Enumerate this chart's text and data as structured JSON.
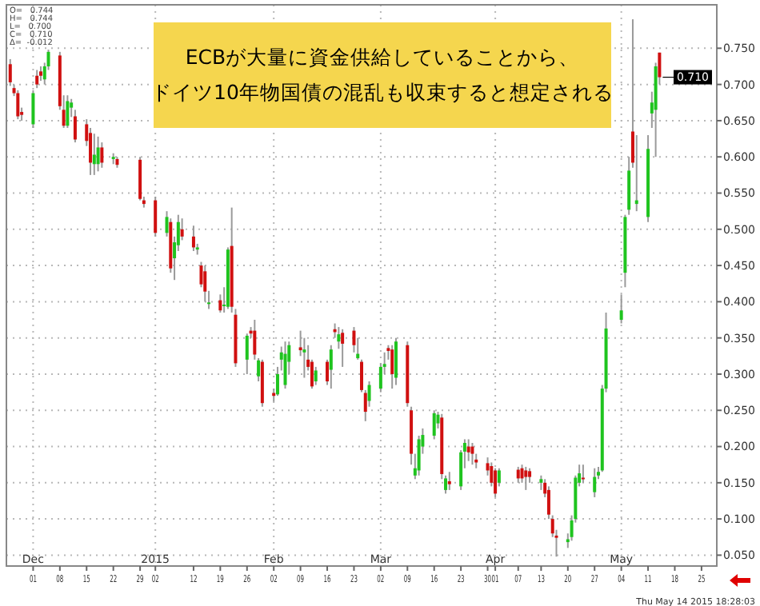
{
  "chart_data": {
    "type": "candlestick",
    "title": "ECBが大量に資金供給していることから、",
    "subtitle": "ドイツ10年物国債の混乱も収束すると想定される",
    "x": [
      "2014-11-25",
      "2014-11-26",
      "2014-11-27",
      "2014-11-28",
      "2014-12-01",
      "2014-12-02",
      "2014-12-03",
      "2014-12-04",
      "2014-12-05",
      "2014-12-08",
      "2014-12-09",
      "2014-12-10",
      "2014-12-11",
      "2014-12-12",
      "2014-12-15",
      "2014-12-16",
      "2014-12-17",
      "2014-12-18",
      "2014-12-19",
      "2014-12-22",
      "2014-12-23",
      "2014-12-29",
      "2014-12-30",
      "2015-01-02",
      "2015-01-05",
      "2015-01-06",
      "2015-01-07",
      "2015-01-08",
      "2015-01-09",
      "2015-01-12",
      "2015-01-13",
      "2015-01-14",
      "2015-01-15",
      "2015-01-16",
      "2015-01-19",
      "2015-01-20",
      "2015-01-21",
      "2015-01-22",
      "2015-01-23",
      "2015-01-26",
      "2015-01-27",
      "2015-01-28",
      "2015-01-29",
      "2015-01-30",
      "2015-02-02",
      "2015-02-03",
      "2015-02-04",
      "2015-02-05",
      "2015-02-06",
      "2015-02-09",
      "2015-02-10",
      "2015-02-11",
      "2015-02-12",
      "2015-02-13",
      "2015-02-16",
      "2015-02-17",
      "2015-02-18",
      "2015-02-19",
      "2015-02-20",
      "2015-02-23",
      "2015-02-24",
      "2015-02-25",
      "2015-02-26",
      "2015-02-27",
      "2015-03-02",
      "2015-03-03",
      "2015-03-04",
      "2015-03-05",
      "2015-03-06",
      "2015-03-09",
      "2015-03-10",
      "2015-03-11",
      "2015-03-12",
      "2015-03-13",
      "2015-03-16",
      "2015-03-17",
      "2015-03-18",
      "2015-03-19",
      "2015-03-20",
      "2015-03-23",
      "2015-03-24",
      "2015-03-25",
      "2015-03-26",
      "2015-03-27",
      "2015-03-30",
      "2015-03-31",
      "2015-04-01",
      "2015-04-02",
      "2015-04-07",
      "2015-04-08",
      "2015-04-09",
      "2015-04-10",
      "2015-04-13",
      "2015-04-14",
      "2015-04-15",
      "2015-04-16",
      "2015-04-17",
      "2015-04-20",
      "2015-04-21",
      "2015-04-22",
      "2015-04-23",
      "2015-04-24",
      "2015-04-27",
      "2015-04-28",
      "2015-04-29",
      "2015-04-30",
      "2015-05-04",
      "2015-05-05",
      "2015-05-06",
      "2015-05-07",
      "2015-05-08",
      "2015-05-11",
      "2015-05-12",
      "2015-05-13",
      "2015-05-14"
    ],
    "ohlc": [
      [
        0.728,
        0.735,
        0.698,
        0.703
      ],
      [
        0.695,
        0.7,
        0.684,
        0.688
      ],
      [
        0.688,
        0.692,
        0.652,
        0.656
      ],
      [
        0.662,
        0.668,
        0.65,
        0.658
      ],
      [
        0.645,
        0.692,
        0.64,
        0.688
      ],
      [
        0.712,
        0.72,
        0.695,
        0.7
      ],
      [
        0.718,
        0.725,
        0.705,
        0.712
      ],
      [
        0.707,
        0.73,
        0.7,
        0.725
      ],
      [
        0.725,
        0.748,
        0.72,
        0.745
      ],
      [
        0.74,
        0.745,
        0.665,
        0.67
      ],
      [
        0.665,
        0.685,
        0.64,
        0.643
      ],
      [
        0.643,
        0.685,
        0.64,
        0.677
      ],
      [
        0.668,
        0.68,
        0.655,
        0.675
      ],
      [
        0.656,
        0.665,
        0.62,
        0.624
      ],
      [
        0.645,
        0.652,
        0.615,
        0.622
      ],
      [
        0.633,
        0.64,
        0.575,
        0.592
      ],
      [
        0.59,
        0.632,
        0.575,
        0.603
      ],
      [
        0.59,
        0.628,
        0.58,
        0.613
      ],
      [
        0.613,
        0.62,
        0.585,
        0.592
      ],
      [
        0.597,
        0.605,
        0.59,
        0.6
      ],
      [
        0.597,
        0.6,
        0.585,
        0.589
      ],
      [
        0.596,
        0.6,
        0.54,
        0.542
      ],
      [
        0.54,
        0.545,
        0.53,
        0.535
      ],
      [
        0.54,
        0.545,
        0.49,
        0.495
      ],
      [
        0.495,
        0.525,
        0.49,
        0.517
      ],
      [
        0.51,
        0.515,
        0.44,
        0.446
      ],
      [
        0.46,
        0.49,
        0.43,
        0.482
      ],
      [
        0.478,
        0.52,
        0.47,
        0.51
      ],
      [
        0.5,
        0.515,
        0.485,
        0.49
      ],
      [
        0.49,
        0.505,
        0.47,
        0.475
      ],
      [
        0.472,
        0.48,
        0.465,
        0.475
      ],
      [
        0.45,
        0.455,
        0.42,
        0.424
      ],
      [
        0.442,
        0.45,
        0.4,
        0.414
      ],
      [
        0.397,
        0.415,
        0.39,
        0.399
      ],
      [
        0.402,
        0.41,
        0.385,
        0.388
      ],
      [
        0.394,
        0.42,
        0.385,
        0.396
      ],
      [
        0.393,
        0.475,
        0.39,
        0.472
      ],
      [
        0.477,
        0.53,
        0.385,
        0.393
      ],
      [
        0.382,
        0.39,
        0.31,
        0.315
      ],
      [
        0.32,
        0.356,
        0.3,
        0.353
      ],
      [
        0.36,
        0.365,
        0.35,
        0.356
      ],
      [
        0.36,
        0.375,
        0.32,
        0.327
      ],
      [
        0.297,
        0.322,
        0.29,
        0.319
      ],
      [
        0.317,
        0.32,
        0.255,
        0.26
      ],
      [
        0.274,
        0.28,
        0.262,
        0.27
      ],
      [
        0.272,
        0.31,
        0.27,
        0.3
      ],
      [
        0.32,
        0.338,
        0.305,
        0.33
      ],
      [
        0.285,
        0.345,
        0.28,
        0.328
      ],
      [
        0.317,
        0.345,
        0.3,
        0.34
      ],
      [
        0.337,
        0.36,
        0.325,
        0.333
      ],
      [
        0.33,
        0.35,
        0.295,
        0.334
      ],
      [
        0.32,
        0.34,
        0.305,
        0.31
      ],
      [
        0.317,
        0.32,
        0.28,
        0.283
      ],
      [
        0.29,
        0.31,
        0.285,
        0.305
      ],
      [
        0.317,
        0.32,
        0.285,
        0.29
      ],
      [
        0.306,
        0.34,
        0.28,
        0.334
      ],
      [
        0.362,
        0.37,
        0.35,
        0.358
      ],
      [
        0.345,
        0.365,
        0.335,
        0.355
      ],
      [
        0.357,
        0.362,
        0.31,
        0.342
      ],
      [
        0.36,
        0.365,
        0.33,
        0.34
      ],
      [
        0.322,
        0.35,
        0.32,
        0.328
      ],
      [
        0.317,
        0.32,
        0.275,
        0.278
      ],
      [
        0.274,
        0.278,
        0.235,
        0.248
      ],
      [
        0.263,
        0.29,
        0.255,
        0.285
      ],
      [
        0.28,
        0.315,
        0.275,
        0.31
      ],
      [
        0.31,
        0.33,
        0.3,
        0.314
      ],
      [
        0.336,
        0.34,
        0.32,
        0.332
      ],
      [
        0.334,
        0.34,
        0.28,
        0.3
      ],
      [
        0.295,
        0.35,
        0.285,
        0.345
      ],
      [
        0.34,
        0.345,
        0.255,
        0.26
      ],
      [
        0.25,
        0.255,
        0.175,
        0.19
      ],
      [
        0.16,
        0.19,
        0.155,
        0.17
      ],
      [
        0.167,
        0.215,
        0.16,
        0.21
      ],
      [
        0.2,
        0.225,
        0.19,
        0.216
      ],
      [
        0.215,
        0.25,
        0.21,
        0.246
      ],
      [
        0.232,
        0.248,
        0.225,
        0.244
      ],
      [
        0.24,
        0.245,
        0.155,
        0.162
      ],
      [
        0.14,
        0.16,
        0.135,
        0.156
      ],
      [
        0.152,
        0.165,
        0.14,
        0.148
      ],
      [
        0.145,
        0.195,
        0.14,
        0.192
      ],
      [
        0.193,
        0.21,
        0.17,
        0.205
      ],
      [
        0.2,
        0.21,
        0.18,
        0.192
      ],
      [
        0.2,
        0.205,
        0.175,
        0.19
      ],
      [
        0.182,
        0.19,
        0.17,
        0.178
      ],
      [
        0.177,
        0.185,
        0.16,
        0.167
      ],
      [
        0.173,
        0.178,
        0.145,
        0.15
      ],
      [
        0.167,
        0.17,
        0.13,
        0.135
      ],
      [
        0.15,
        0.17,
        0.145,
        0.167
      ],
      [
        0.168,
        0.172,
        0.15,
        0.156
      ],
      [
        0.17,
        0.175,
        0.15,
        0.156
      ],
      [
        0.167,
        0.172,
        0.14,
        0.158
      ],
      [
        0.166,
        0.17,
        0.15,
        0.158
      ],
      [
        0.15,
        0.16,
        0.14,
        0.155
      ],
      [
        0.15,
        0.155,
        0.13,
        0.135
      ],
      [
        0.14,
        0.145,
        0.1,
        0.106
      ],
      [
        0.1,
        0.105,
        0.075,
        0.08
      ],
      [
        0.077,
        0.085,
        0.048,
        0.074
      ],
      [
        0.068,
        0.08,
        0.06,
        0.072
      ],
      [
        0.075,
        0.105,
        0.07,
        0.098
      ],
      [
        0.1,
        0.16,
        0.095,
        0.157
      ],
      [
        0.15,
        0.175,
        0.145,
        0.163
      ],
      [
        0.157,
        0.175,
        0.15,
        0.155
      ],
      [
        0.137,
        0.17,
        0.13,
        0.158
      ],
      [
        0.16,
        0.172,
        0.155,
        0.165
      ],
      [
        0.167,
        0.285,
        0.165,
        0.28
      ],
      [
        0.28,
        0.385,
        0.275,
        0.363
      ],
      [
        0.375,
        0.41,
        0.37,
        0.388
      ],
      [
        0.44,
        0.52,
        0.42,
        0.517
      ],
      [
        0.527,
        0.6,
        0.52,
        0.581
      ],
      [
        0.635,
        0.79,
        0.585,
        0.592
      ],
      [
        0.535,
        0.63,
        0.525,
        0.54
      ],
      [
        0.517,
        0.63,
        0.51,
        0.611
      ],
      [
        0.66,
        0.69,
        0.64,
        0.675
      ],
      [
        0.665,
        0.73,
        0.6,
        0.725
      ],
      [
        0.744,
        0.744,
        0.7,
        0.71
      ]
    ],
    "colors": [
      "#d01010",
      "#d01010",
      "#d01010",
      "#d01010",
      "#1fc41f",
      "#d01010",
      "#d01010",
      "#1fc41f",
      "#1fc41f",
      "#d01010",
      "#d01010",
      "#1fc41f",
      "#1fc41f",
      "#d01010",
      "#d01010",
      "#d01010",
      "#1fc41f",
      "#1fc41f",
      "#d01010",
      "#1fc41f",
      "#d01010",
      "#d01010",
      "#d01010",
      "#d01010",
      "#1fc41f",
      "#d01010",
      "#1fc41f",
      "#1fc41f",
      "#d01010",
      "#d01010",
      "#1fc41f",
      "#d01010",
      "#d01010",
      "#1fc41f",
      "#d01010",
      "#1fc41f",
      "#1fc41f",
      "#d01010",
      "#d01010",
      "#1fc41f",
      "#d01010",
      "#d01010",
      "#1fc41f",
      "#d01010",
      "#d01010",
      "#1fc41f",
      "#1fc41f",
      "#1fc41f",
      "#1fc41f",
      "#d01010",
      "#1fc41f",
      "#d01010",
      "#d01010",
      "#1fc41f",
      "#d01010",
      "#1fc41f",
      "#d01010",
      "#1fc41f",
      "#d01010",
      "#d01010",
      "#1fc41f",
      "#d01010",
      "#d01010",
      "#1fc41f",
      "#1fc41f",
      "#1fc41f",
      "#d01010",
      "#d01010",
      "#1fc41f",
      "#d01010",
      "#d01010",
      "#1fc41f",
      "#1fc41f",
      "#1fc41f",
      "#1fc41f",
      "#1fc41f",
      "#d01010",
      "#1fc41f",
      "#d01010",
      "#1fc41f",
      "#1fc41f",
      "#d01010",
      "#d01010",
      "#d01010",
      "#d01010",
      "#d01010",
      "#d01010",
      "#1fc41f",
      "#d01010",
      "#d01010",
      "#d01010",
      "#d01010",
      "#1fc41f",
      "#d01010",
      "#d01010",
      "#d01010",
      "#d01010",
      "#1fc41f",
      "#1fc41f",
      "#1fc41f",
      "#1fc41f",
      "#d01010",
      "#1fc41f",
      "#1fc41f",
      "#1fc41f",
      "#1fc41f",
      "#1fc41f",
      "#1fc41f",
      "#1fc41f",
      "#d01010",
      "#1fc41f",
      "#1fc41f",
      "#1fc41f",
      "#1fc41f",
      "#d01010"
    ],
    "xlim": [
      "2014-11-24",
      "2015-05-29"
    ],
    "xticks": [
      {
        "value": "2014-12-01",
        "label": "01"
      },
      {
        "value": "2014-12-08",
        "label": "08"
      },
      {
        "value": "2014-12-15",
        "label": "15"
      },
      {
        "value": "2014-12-22",
        "label": "22"
      },
      {
        "value": "2014-12-29",
        "label": "29"
      },
      {
        "value": "2015-01-02",
        "label": "02"
      },
      {
        "value": "2015-01-12",
        "label": "12"
      },
      {
        "value": "2015-01-19",
        "label": "19"
      },
      {
        "value": "2015-01-26",
        "label": "26"
      },
      {
        "value": "2015-02-02",
        "label": "02"
      },
      {
        "value": "2015-02-09",
        "label": "09"
      },
      {
        "value": "2015-02-16",
        "label": "16"
      },
      {
        "value": "2015-02-23",
        "label": "23"
      },
      {
        "value": "2015-03-02",
        "label": "02"
      },
      {
        "value": "2015-03-09",
        "label": "09"
      },
      {
        "value": "2015-03-16",
        "label": "16"
      },
      {
        "value": "2015-03-23",
        "label": "23"
      },
      {
        "value": "2015-03-30",
        "label": "30"
      },
      {
        "value": "2015-04-01",
        "label": "01"
      },
      {
        "value": "2015-04-07",
        "label": "07"
      },
      {
        "value": "2015-04-13",
        "label": "13"
      },
      {
        "value": "2015-04-20",
        "label": "20"
      },
      {
        "value": "2015-04-27",
        "label": "27"
      },
      {
        "value": "2015-05-04",
        "label": "04"
      },
      {
        "value": "2015-05-11",
        "label": "11"
      },
      {
        "value": "2015-05-18",
        "label": "18"
      },
      {
        "value": "2015-05-25",
        "label": "25"
      }
    ],
    "x2lim": [
      "2014-11-24",
      "2015-05-29"
    ],
    "x2ticks": [
      {
        "value": "2014-12-01",
        "label": "Dec"
      },
      {
        "value": "2015-01-02",
        "label": "2015"
      },
      {
        "value": "2015-02-02",
        "label": "Feb"
      },
      {
        "value": "2015-03-02",
        "label": "Mar"
      },
      {
        "value": "2015-04-01",
        "label": "Apr"
      },
      {
        "value": "2015-05-04",
        "label": "May"
      }
    ],
    "ylim": [
      0.035,
      0.81
    ],
    "yticks": [
      {
        "value": 0.05,
        "label": "0.050"
      },
      {
        "value": 0.1,
        "label": "0.100"
      },
      {
        "value": 0.15,
        "label": "0.150"
      },
      {
        "value": 0.2,
        "label": "0.200"
      },
      {
        "value": 0.25,
        "label": "0.250"
      },
      {
        "value": 0.3,
        "label": "0.300"
      },
      {
        "value": 0.35,
        "label": "0.350"
      },
      {
        "value": 0.4,
        "label": "0.400"
      },
      {
        "value": 0.45,
        "label": "0.450"
      },
      {
        "value": 0.5,
        "label": "0.500"
      },
      {
        "value": 0.55,
        "label": "0.550"
      },
      {
        "value": 0.6,
        "label": "0.600"
      },
      {
        "value": 0.65,
        "label": "0.650"
      },
      {
        "value": 0.7,
        "label": "0.700"
      },
      {
        "value": 0.75,
        "label": "0.750"
      }
    ],
    "grid": true,
    "annotations": [
      "O=   0.744",
      "H=   0.744",
      "L=   0.700",
      "C=   0.710",
      "Δ=  -0.012",
      "Thu May 14 2015 18:28:03",
      {
        "text": "0.710",
        "x": "2015-05-14",
        "y": 0.71
      }
    ]
  }
}
